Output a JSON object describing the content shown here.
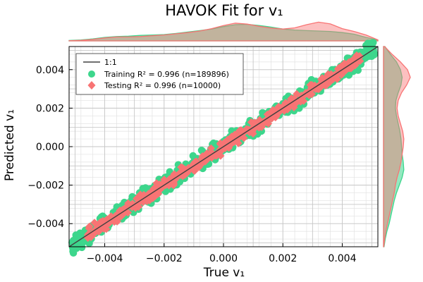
{
  "chart_data": {
    "type": "scatter",
    "title": "HAVOK Fit for v₁",
    "xlabel": "True v₁",
    "ylabel": "Predicted v₁",
    "xlim": [
      -0.0052,
      0.0052
    ],
    "ylim": [
      -0.0052,
      0.0052
    ],
    "x_ticks": [
      -0.004,
      -0.002,
      0.0,
      0.002,
      0.004
    ],
    "x_tick_labels": [
      "−0.004",
      "−0.002",
      "0.000",
      "0.002",
      "0.004"
    ],
    "y_ticks": [
      -0.004,
      -0.002,
      0.0,
      0.002,
      0.004
    ],
    "y_tick_labels": [
      "−0.004",
      "−0.002",
      "0.000",
      "0.002",
      "0.004"
    ],
    "grid": true,
    "legend_position": "top-left",
    "series": [
      {
        "name": "1:1",
        "kind": "line",
        "color": "#404040",
        "x": [
          -0.0052,
          0.0052
        ],
        "y": [
          -0.0052,
          0.0052
        ]
      },
      {
        "name": "Training",
        "legend_stat": "R² = 0.996 (n=189896)",
        "kind": "points",
        "marker": "circle",
        "color": "#3dd68c",
        "x_range": [
          -0.0051,
          0.0051
        ],
        "spread": 0.00022
      },
      {
        "name": "Testing",
        "legend_stat": "R² = 0.996 (n=10000)",
        "kind": "points",
        "marker": "diamond",
        "color": "#f87474",
        "x_range": [
          -0.0046,
          0.0046
        ],
        "spread": 0.00016
      }
    ],
    "marginal_x": {
      "type": "density",
      "training_color": "#3dd68c",
      "testing_color": "#f87474",
      "x": [
        -0.0052,
        -0.0048,
        -0.0044,
        -0.004,
        -0.0036,
        -0.0032,
        -0.0028,
        -0.0024,
        -0.002,
        -0.0016,
        -0.0012,
        -0.0008,
        -0.0004,
        0.0,
        0.0004,
        0.0008,
        0.0012,
        0.0016,
        0.002,
        0.0024,
        0.0028,
        0.0032,
        0.0036,
        0.004,
        0.0044,
        0.0048,
        0.0052
      ],
      "training": [
        0.02,
        0.05,
        0.1,
        0.18,
        0.22,
        0.24,
        0.28,
        0.3,
        0.32,
        0.38,
        0.45,
        0.52,
        0.6,
        0.72,
        0.82,
        0.84,
        0.78,
        0.7,
        0.6,
        0.55,
        0.52,
        0.5,
        0.48,
        0.42,
        0.34,
        0.18,
        0.04
      ],
      "testing": [
        0.01,
        0.03,
        0.08,
        0.15,
        0.2,
        0.2,
        0.22,
        0.26,
        0.3,
        0.36,
        0.42,
        0.5,
        0.62,
        0.78,
        0.9,
        0.85,
        0.74,
        0.65,
        0.6,
        0.66,
        0.82,
        0.95,
        0.86,
        0.62,
        0.48,
        0.3,
        0.05
      ]
    },
    "marginal_y": {
      "type": "density",
      "y": [
        -0.0052,
        -0.0048,
        -0.0044,
        -0.004,
        -0.0036,
        -0.0032,
        -0.0028,
        -0.0024,
        -0.002,
        -0.0016,
        -0.0012,
        -0.0008,
        -0.0004,
        0.0,
        0.0004,
        0.0008,
        0.0012,
        0.0016,
        0.002,
        0.0024,
        0.0028,
        0.0032,
        0.0036,
        0.004,
        0.0044,
        0.0048,
        0.0052
      ],
      "training": [
        0.02,
        0.06,
        0.12,
        0.2,
        0.26,
        0.32,
        0.38,
        0.46,
        0.56,
        0.66,
        0.72,
        0.7,
        0.66,
        0.64,
        0.62,
        0.58,
        0.52,
        0.46,
        0.42,
        0.44,
        0.52,
        0.62,
        0.66,
        0.6,
        0.46,
        0.24,
        0.05
      ],
      "testing": [
        0.01,
        0.04,
        0.08,
        0.14,
        0.2,
        0.26,
        0.32,
        0.38,
        0.42,
        0.48,
        0.56,
        0.62,
        0.66,
        0.7,
        0.72,
        0.68,
        0.6,
        0.52,
        0.48,
        0.52,
        0.64,
        0.82,
        0.95,
        0.85,
        0.6,
        0.3,
        0.04
      ]
    }
  }
}
